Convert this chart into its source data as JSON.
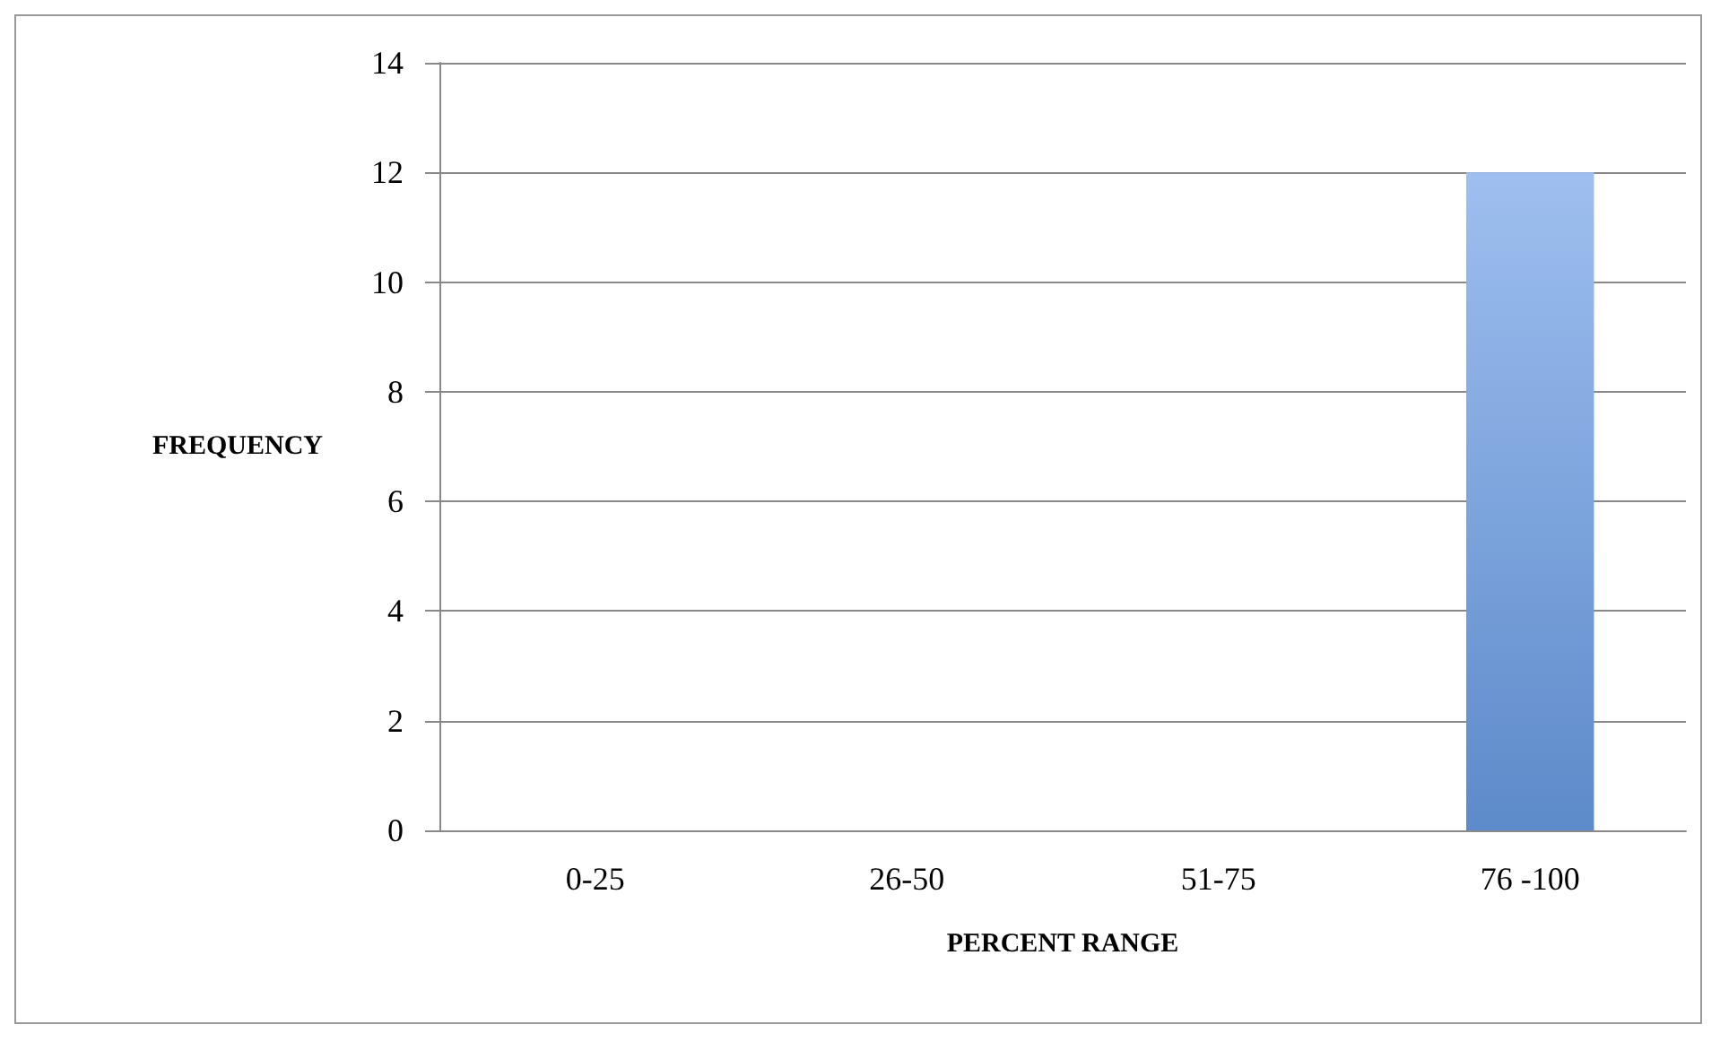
{
  "chart_data": {
    "type": "bar",
    "xlabel": "PERCENT RANGE",
    "ylabel": "FREQUENCY",
    "categories": [
      "0-25",
      "26-50",
      "51-75",
      "76 -100"
    ],
    "values": [
      0,
      0,
      0,
      12
    ],
    "color": "#6a9de6",
    "ylim": [
      0,
      14
    ],
    "yticks": [
      0,
      2,
      4,
      6,
      8,
      10,
      12,
      14
    ],
    "grid": "y"
  }
}
